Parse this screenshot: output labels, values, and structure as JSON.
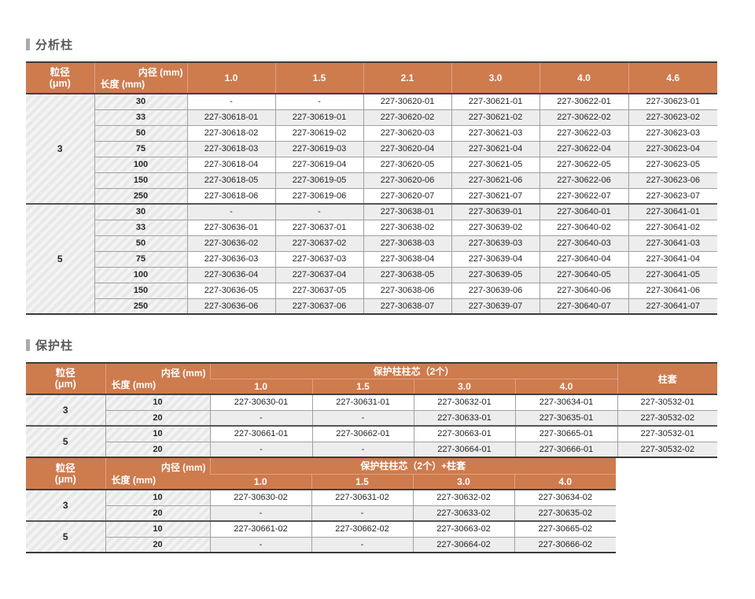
{
  "colors": {
    "header_orange": "#ce7b4e",
    "title_gray": "#595959",
    "marker_gray": "#ababab",
    "alt_row_gray": "#ededed",
    "border_dark": "#3b3b3b"
  },
  "corner": {
    "particle_label": "粒径",
    "particle_unit": "(μm)",
    "inner_diameter_label": "内径 (mm)",
    "length_label": "长度 (mm)"
  },
  "analytical": {
    "title": "分析柱",
    "columns": [
      "1.0",
      "1.5",
      "2.1",
      "3.0",
      "4.0",
      "4.6"
    ],
    "groups": [
      {
        "particle": "3",
        "rows": [
          {
            "length": "30",
            "cells": [
              "-",
              "-",
              "227-30620-01",
              "227-30621-01",
              "227-30622-01",
              "227-30623-01"
            ]
          },
          {
            "length": "33",
            "cells": [
              "227-30618-01",
              "227-30619-01",
              "227-30620-02",
              "227-30621-02",
              "227-30622-02",
              "227-30623-02"
            ]
          },
          {
            "length": "50",
            "cells": [
              "227-30618-02",
              "227-30619-02",
              "227-30620-03",
              "227-30621-03",
              "227-30622-03",
              "227-30623-03"
            ]
          },
          {
            "length": "75",
            "cells": [
              "227-30618-03",
              "227-30619-03",
              "227-30620-04",
              "227-30621-04",
              "227-30622-04",
              "227-30623-04"
            ]
          },
          {
            "length": "100",
            "cells": [
              "227-30618-04",
              "227-30619-04",
              "227-30620-05",
              "227-30621-05",
              "227-30622-05",
              "227-30623-05"
            ]
          },
          {
            "length": "150",
            "cells": [
              "227-30618-05",
              "227-30619-05",
              "227-30620-06",
              "227-30621-06",
              "227-30622-06",
              "227-30623-06"
            ]
          },
          {
            "length": "250",
            "cells": [
              "227-30618-06",
              "227-30619-06",
              "227-30620-07",
              "227-30621-07",
              "227-30622-07",
              "227-30623-07"
            ]
          }
        ]
      },
      {
        "particle": "5",
        "rows": [
          {
            "length": "30",
            "cells": [
              "-",
              "-",
              "227-30638-01",
              "227-30639-01",
              "227-30640-01",
              "227-30641-01"
            ]
          },
          {
            "length": "33",
            "cells": [
              "227-30636-01",
              "227-30637-01",
              "227-30638-02",
              "227-30639-02",
              "227-30640-02",
              "227-30641-02"
            ]
          },
          {
            "length": "50",
            "cells": [
              "227-30636-02",
              "227-30637-02",
              "227-30638-03",
              "227-30639-03",
              "227-30640-03",
              "227-30641-03"
            ]
          },
          {
            "length": "75",
            "cells": [
              "227-30636-03",
              "227-30637-03",
              "227-30638-04",
              "227-30639-04",
              "227-30640-04",
              "227-30641-04"
            ]
          },
          {
            "length": "100",
            "cells": [
              "227-30636-04",
              "227-30637-04",
              "227-30638-05",
              "227-30639-05",
              "227-30640-05",
              "227-30641-05"
            ]
          },
          {
            "length": "150",
            "cells": [
              "227-30636-05",
              "227-30637-05",
              "227-30638-06",
              "227-30639-06",
              "227-30640-06",
              "227-30641-06"
            ]
          },
          {
            "length": "250",
            "cells": [
              "227-30636-06",
              "227-30637-06",
              "227-30638-07",
              "227-30639-07",
              "227-30640-07",
              "227-30641-07"
            ]
          }
        ]
      }
    ]
  },
  "guard": {
    "title": "保护柱",
    "cartridge": {
      "span_label": "保护柱柱芯（2个）",
      "sleeve_label": "柱套",
      "columns": [
        "1.0",
        "1.5",
        "3.0",
        "4.0"
      ],
      "groups": [
        {
          "particle": "3",
          "rows": [
            {
              "length": "10",
              "cells": [
                "227-30630-01",
                "227-30631-01",
                "227-30632-01",
                "227-30634-01"
              ],
              "sleeve": "227-30532-01"
            },
            {
              "length": "20",
              "cells": [
                "-",
                "-",
                "227-30633-01",
                "227-30635-01"
              ],
              "sleeve": "227-30532-02"
            }
          ]
        },
        {
          "particle": "5",
          "rows": [
            {
              "length": "10",
              "cells": [
                "227-30661-01",
                "227-30662-01",
                "227-30663-01",
                "227-30665-01"
              ],
              "sleeve": "227-30532-01"
            },
            {
              "length": "20",
              "cells": [
                "-",
                "-",
                "227-30664-01",
                "227-30666-01"
              ],
              "sleeve": "227-30532-02"
            }
          ]
        }
      ]
    },
    "cartridge_with_sleeve": {
      "span_label": "保护柱柱芯（2个）+柱套",
      "columns": [
        "1.0",
        "1.5",
        "3.0",
        "4.0"
      ],
      "groups": [
        {
          "particle": "3",
          "rows": [
            {
              "length": "10",
              "cells": [
                "227-30630-02",
                "227-30631-02",
                "227-30632-02",
                "227-30634-02"
              ]
            },
            {
              "length": "20",
              "cells": [
                "-",
                "-",
                "227-30633-02",
                "227-30635-02"
              ]
            }
          ]
        },
        {
          "particle": "5",
          "rows": [
            {
              "length": "10",
              "cells": [
                "227-30661-02",
                "227-30662-02",
                "227-30663-02",
                "227-30665-02"
              ]
            },
            {
              "length": "20",
              "cells": [
                "-",
                "-",
                "227-30664-02",
                "227-30666-02"
              ]
            }
          ]
        }
      ]
    }
  }
}
